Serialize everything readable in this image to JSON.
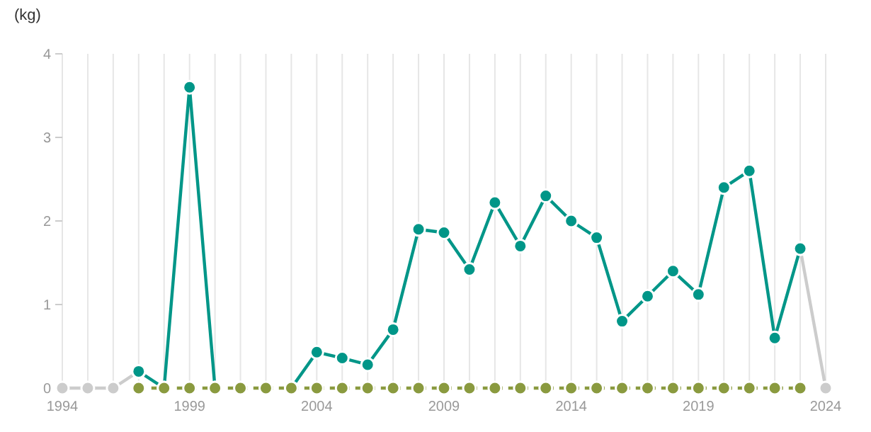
{
  "chart_data": {
    "type": "line",
    "ylabel": "(kg)",
    "x": [
      1994,
      1995,
      1996,
      1997,
      1998,
      1999,
      2000,
      2001,
      2002,
      2003,
      2004,
      2005,
      2006,
      2007,
      2008,
      2009,
      2010,
      2011,
      2012,
      2013,
      2014,
      2015,
      2016,
      2017,
      2018,
      2019,
      2020,
      2021,
      2022,
      2023,
      2024
    ],
    "series": [
      {
        "color": "#cccccc",
        "line_style": "solid",
        "values": [
          0,
          0,
          0,
          0.2,
          null,
          null,
          null,
          null,
          null,
          null,
          null,
          null,
          null,
          null,
          null,
          null,
          null,
          null,
          null,
          null,
          null,
          null,
          null,
          null,
          null,
          null,
          null,
          null,
          null,
          1.67,
          0
        ]
      },
      {
        "color": "#009688",
        "line_style": "solid",
        "values": [
          null,
          null,
          null,
          0.2,
          0,
          3.6,
          0,
          null,
          null,
          0,
          0.43,
          0.36,
          0.28,
          0.7,
          1.9,
          1.86,
          1.42,
          2.22,
          1.7,
          2.3,
          2.0,
          1.8,
          0.8,
          1.1,
          1.4,
          1.12,
          2.4,
          2.6,
          0.6,
          1.67,
          null
        ]
      },
      {
        "color": "#8a9a3f",
        "line_style": "dashed",
        "values": [
          null,
          null,
          null,
          0,
          0,
          0,
          0,
          0,
          0,
          0,
          0,
          0,
          0,
          0,
          0,
          0,
          0,
          0,
          0,
          0,
          0,
          0,
          0,
          0,
          0,
          0,
          0,
          0,
          0,
          0,
          null
        ]
      }
    ],
    "xlim": [
      1994,
      2024
    ],
    "xticks": [
      1994,
      {
        "value": 1995,
        "label": null
      },
      {
        "value": 1996,
        "label": null
      },
      {
        "value": 1997,
        "label": null
      },
      {
        "value": 1998,
        "label": null
      },
      1999,
      {
        "value": 2000,
        "label": null
      },
      {
        "value": 2001,
        "label": null
      },
      {
        "value": 2002,
        "label": null
      },
      {
        "value": 2003,
        "label": null
      },
      2004,
      {
        "value": 2005,
        "label": null
      },
      {
        "value": 2006,
        "label": null
      },
      {
        "value": 2007,
        "label": null
      },
      {
        "value": 2008,
        "label": null
      },
      2009,
      {
        "value": 2010,
        "label": null
      },
      {
        "value": 2011,
        "label": null
      },
      {
        "value": 2012,
        "label": null
      },
      {
        "value": 2013,
        "label": null
      },
      2014,
      {
        "value": 2015,
        "label": null
      },
      {
        "value": 2016,
        "label": null
      },
      {
        "value": 2017,
        "label": null
      },
      {
        "value": 2018,
        "label": null
      },
      2019,
      {
        "value": 2020,
        "label": null
      },
      {
        "value": 2021,
        "label": null
      },
      {
        "value": 2022,
        "label": null
      },
      {
        "value": 2023,
        "label": null
      },
      2024
    ],
    "ylim": [
      0,
      4
    ],
    "yticks": [
      0,
      1,
      2,
      3,
      4
    ],
    "grid": "x",
    "marker": "circle"
  }
}
